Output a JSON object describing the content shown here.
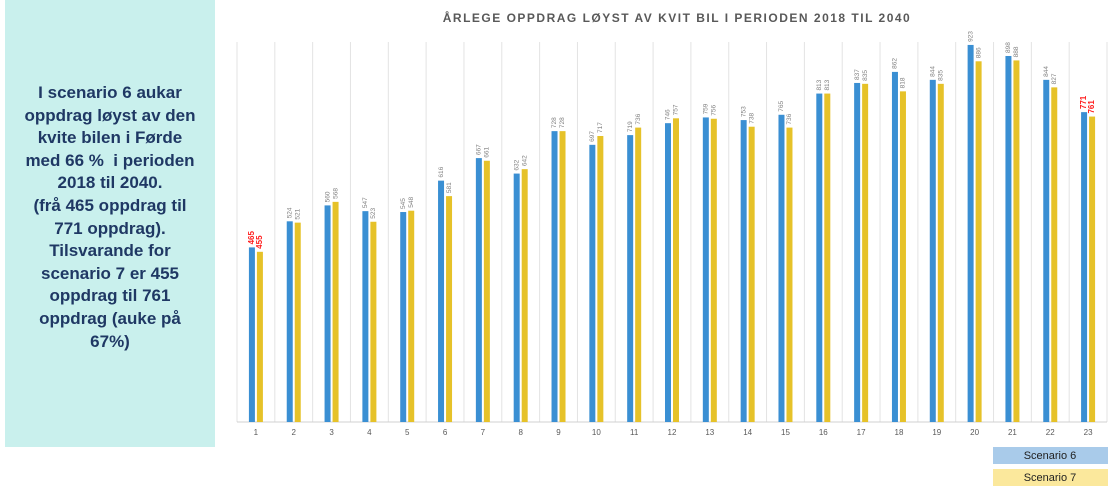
{
  "chart_data": {
    "type": "bar",
    "title": "ÅRLEGE OPPDRAG LØYST AV KVIT BIL I PERIODEN 2018 TIL 2040",
    "annotation": [
      "I scenario 6 aukar",
      "oppdrag løyst av den",
      "kvite bilen i Førde",
      "med 66 %  i perioden",
      "2018 til 2040.",
      "(frå 465 oppdrag til",
      "771 oppdrag).",
      "Tilsvarande for",
      "scenario 7 er 455",
      "oppdrag til 761",
      "oppdrag (auke på",
      "67%)"
    ],
    "categories": [
      "1",
      "2",
      "3",
      "4",
      "5",
      "6",
      "7",
      "8",
      "9",
      "10",
      "11",
      "12",
      "13",
      "14",
      "15",
      "16",
      "17",
      "18",
      "19",
      "20",
      "21",
      "22",
      "23"
    ],
    "series": [
      {
        "name": "Scenario 6",
        "color": "#3a8fd3",
        "legend_color": "#a9cbea",
        "values": [
          465,
          524,
          560,
          547,
          545,
          616,
          667,
          632,
          728,
          697,
          719,
          746,
          759,
          753,
          765,
          813,
          837,
          862,
          844,
          923,
          898,
          844,
          771
        ]
      },
      {
        "name": "Scenario 7",
        "color": "#e6c229",
        "legend_color": "#fbe89c",
        "values": [
          455,
          521,
          568,
          523,
          548,
          581,
          661,
          642,
          728,
          717,
          736,
          757,
          756,
          738,
          736,
          813,
          835,
          818,
          835,
          886,
          888,
          827,
          761
        ]
      }
    ],
    "ylim": [
      70,
      950
    ],
    "highlight": {
      "color": "#ff1a1a",
      "indices": [
        0,
        22
      ]
    },
    "legend": "bottom-right"
  }
}
